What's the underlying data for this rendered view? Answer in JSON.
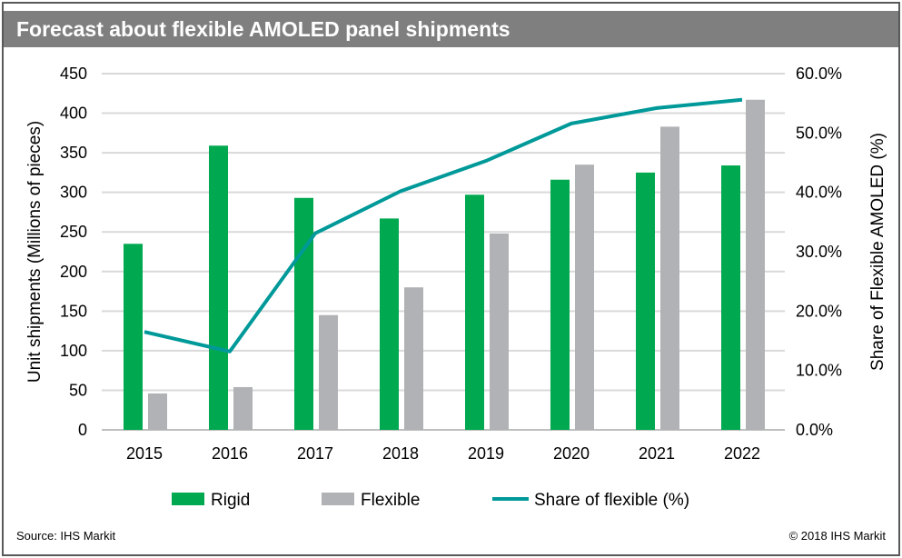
{
  "title": "Forecast about flexible AMOLED panel shipments",
  "footer": {
    "source": "Source: IHS Markit",
    "copyright": "© 2018 IHS Markit"
  },
  "chart_data": {
    "type": "bar+line",
    "title": "Forecast about flexible AMOLED panel shipments",
    "categories": [
      "2015",
      "2016",
      "2017",
      "2018",
      "2019",
      "2020",
      "2021",
      "2022"
    ],
    "ylabel": "Unit shipments (Millions of pieces)",
    "y2label": "Share of Flexible AMOLED (%)",
    "ylim": [
      0,
      450
    ],
    "yticks": [
      "0",
      "50",
      "100",
      "150",
      "200",
      "250",
      "300",
      "350",
      "400",
      "450"
    ],
    "y2lim": [
      0,
      60
    ],
    "y2ticks": [
      "0.0%",
      "10.0%",
      "20.0%",
      "30.0%",
      "40.0%",
      "50.0%",
      "60.0%"
    ],
    "grid": true,
    "legend_position": "bottom",
    "series": [
      {
        "name": "Rigid",
        "type": "bar",
        "axis": "left",
        "color": "#00a84f",
        "values": [
          235,
          359,
          293,
          267,
          297,
          316,
          325,
          334
        ]
      },
      {
        "name": "Flexible",
        "type": "bar",
        "axis": "left",
        "color": "#b1b2b5",
        "values": [
          46,
          54,
          145,
          180,
          248,
          335,
          383,
          417
        ]
      },
      {
        "name": "Share of flexible (%)",
        "type": "line",
        "axis": "right",
        "color": "#009999",
        "values": [
          16.5,
          13.2,
          33.1,
          40.2,
          45.3,
          51.6,
          54.2,
          55.6
        ]
      }
    ]
  }
}
